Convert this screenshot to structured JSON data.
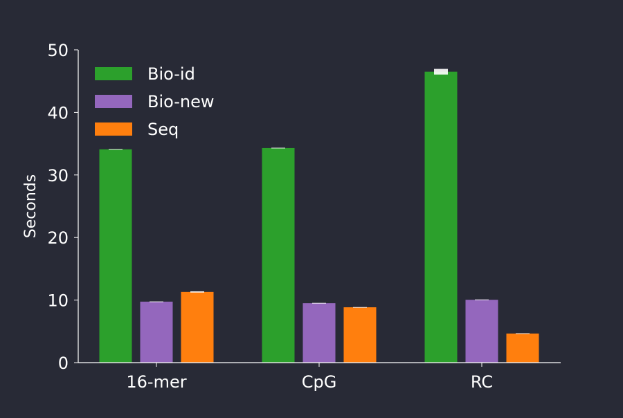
{
  "chart_data": {
    "type": "bar",
    "categories": [
      "16-mer",
      "CpG",
      "RC"
    ],
    "series": [
      {
        "name": "Bio-id",
        "color": "#2ca02c",
        "values": [
          34.1,
          34.3,
          46.5
        ],
        "errors": [
          0.05,
          0.05,
          0.45
        ]
      },
      {
        "name": "Bio-new",
        "color": "#9467bd",
        "values": [
          9.75,
          9.5,
          10.05
        ],
        "errors": [
          0.03,
          0.05,
          0.05
        ]
      },
      {
        "name": "Seq",
        "color": "#ff7f0e",
        "values": [
          11.3,
          8.85,
          4.65
        ],
        "errors": [
          0.1,
          0.03,
          0.05
        ]
      }
    ],
    "xlabel": "",
    "ylabel": "Seconds",
    "ylim": [
      0,
      50
    ],
    "yticks": [
      0,
      10,
      20,
      30,
      40,
      50
    ],
    "grid": false,
    "legend": "top-left",
    "background": "#282a36"
  }
}
